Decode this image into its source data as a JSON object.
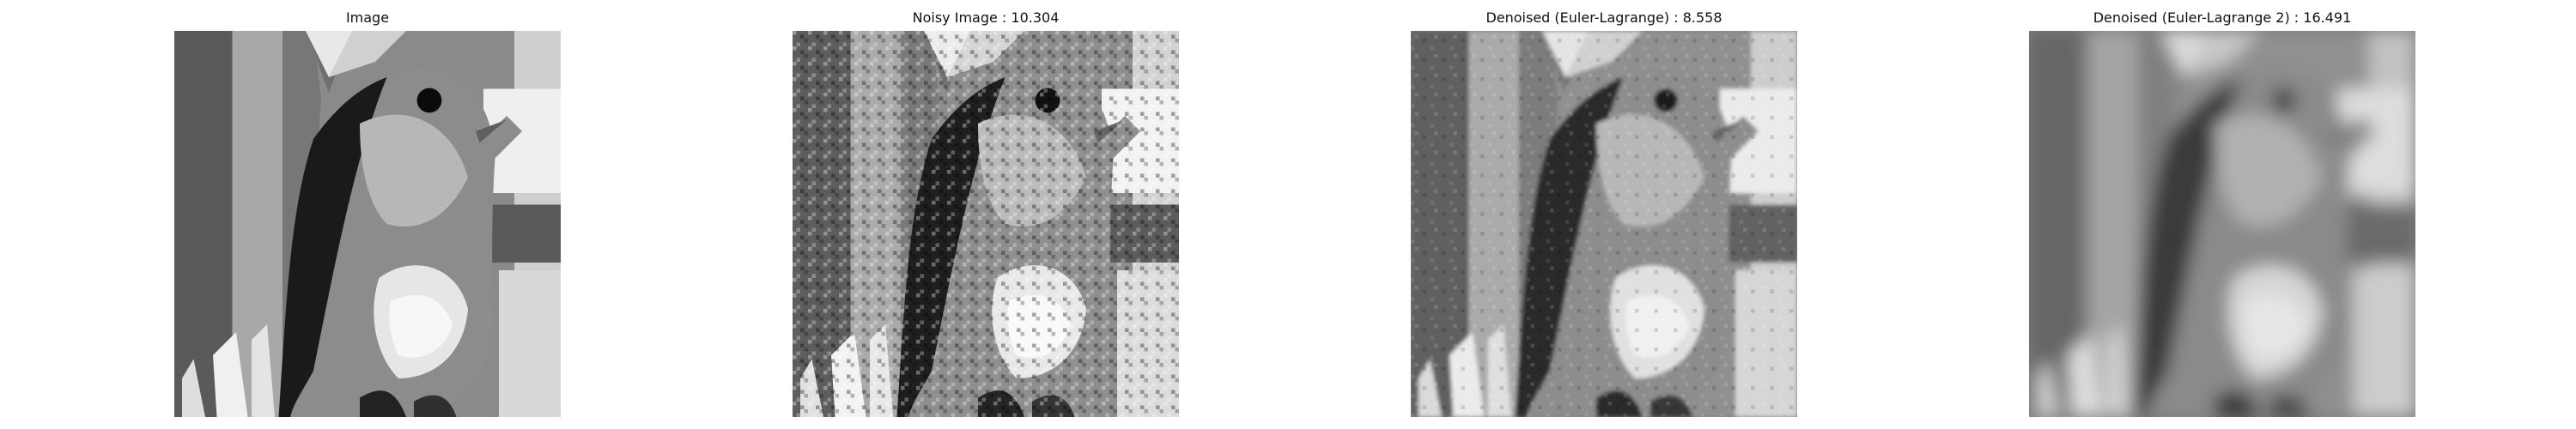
{
  "panels": [
    {
      "title": "Image",
      "variant": "original"
    },
    {
      "title": "Noisy Image : 10.304",
      "variant": "noisy"
    },
    {
      "title": "Denoised (Euler-Lagrange) : 8.558",
      "variant": "denoised"
    },
    {
      "title": "Denoised (Euler-Lagrange 2) : 16.491",
      "variant": "blurred"
    }
  ]
}
